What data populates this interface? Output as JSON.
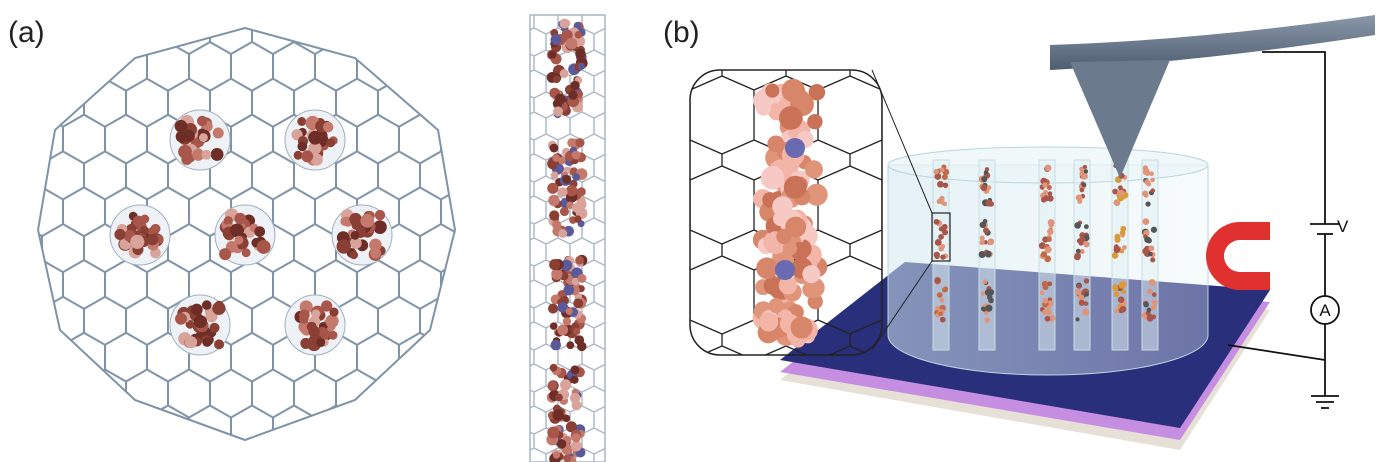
{
  "panels": [
    {
      "label": "(a)"
    },
    {
      "label": "(b)"
    }
  ],
  "circuit": {
    "voltage_label": "V",
    "ammeter_label": "A"
  }
}
